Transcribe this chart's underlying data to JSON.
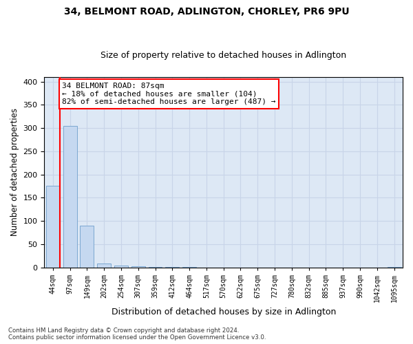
{
  "title1": "34, BELMONT ROAD, ADLINGTON, CHORLEY, PR6 9PU",
  "title2": "Size of property relative to detached houses in Adlington",
  "xlabel": "Distribution of detached houses by size in Adlington",
  "ylabel": "Number of detached properties",
  "categories": [
    "44sqm",
    "97sqm",
    "149sqm",
    "202sqm",
    "254sqm",
    "307sqm",
    "359sqm",
    "412sqm",
    "464sqm",
    "517sqm",
    "570sqm",
    "622sqm",
    "675sqm",
    "727sqm",
    "780sqm",
    "832sqm",
    "885sqm",
    "937sqm",
    "990sqm",
    "1042sqm",
    "1095sqm"
  ],
  "values": [
    175,
    305,
    90,
    8,
    3,
    2,
    1,
    1,
    1,
    0,
    0,
    0,
    0,
    0,
    0,
    0,
    0,
    0,
    0,
    0,
    1
  ],
  "bar_color": "#c5d8f0",
  "bar_edge_color": "#7ba7d0",
  "annotation_text": "34 BELMONT ROAD: 87sqm\n← 18% of detached houses are smaller (104)\n82% of semi-detached houses are larger (487) →",
  "annotation_box_color": "white",
  "annotation_box_edge_color": "red",
  "line_color": "red",
  "property_line_x": 0.43,
  "ylim": [
    0,
    410
  ],
  "yticks": [
    0,
    50,
    100,
    150,
    200,
    250,
    300,
    350,
    400
  ],
  "footnote1": "Contains HM Land Registry data © Crown copyright and database right 2024.",
  "footnote2": "Contains public sector information licensed under the Open Government Licence v3.0.",
  "grid_color": "#c8d4e8",
  "background_color": "#dde8f5"
}
